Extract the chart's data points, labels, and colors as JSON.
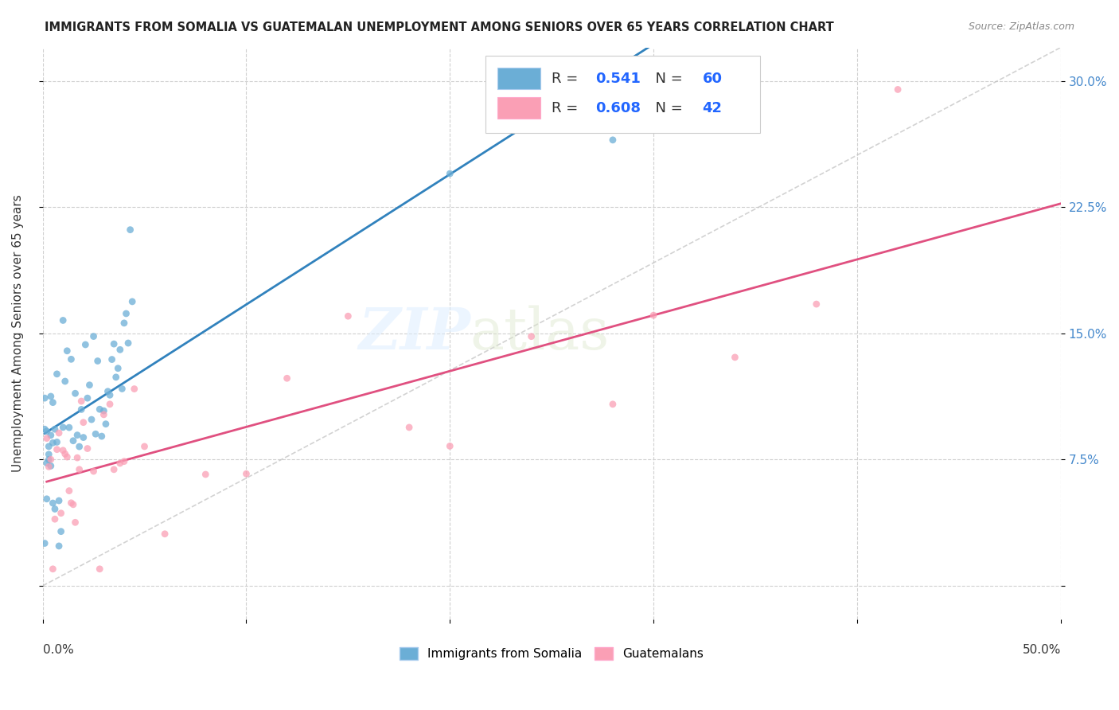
{
  "title": "IMMIGRANTS FROM SOMALIA VS GUATEMALAN UNEMPLOYMENT AMONG SENIORS OVER 65 YEARS CORRELATION CHART",
  "source": "Source: ZipAtlas.com",
  "ylabel": "Unemployment Among Seniors over 65 years",
  "ytick_labels": [
    "",
    "7.5%",
    "15.0%",
    "22.5%",
    "30.0%"
  ],
  "ytick_values": [
    0,
    0.075,
    0.15,
    0.225,
    0.3
  ],
  "xlim": [
    0.0,
    0.5
  ],
  "ylim": [
    -0.02,
    0.32
  ],
  "legend_label_somalia": "Immigrants from Somalia",
  "legend_label_guatemala": "Guatemalans",
  "color_somalia": "#6baed6",
  "color_guatemala": "#fa9fb5",
  "color_somalia_line": "#3182bd",
  "color_guatemala_line": "#e05080",
  "watermark_zip": "ZIP",
  "watermark_atlas": "atlas",
  "r_somalia": "0.541",
  "n_somalia": "60",
  "r_guatemala": "0.608",
  "n_guatemala": "42"
}
